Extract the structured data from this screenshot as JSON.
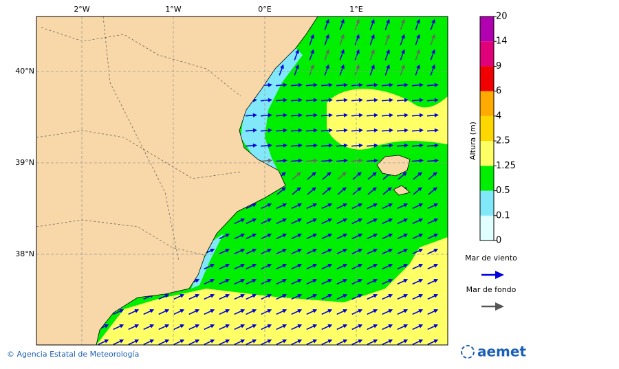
{
  "map": {
    "lon_labels": [
      "2°W",
      "1°W",
      "0°E",
      "1°E"
    ],
    "lat_labels": [
      "40°N",
      "39°N",
      "38°N"
    ],
    "colorbar": {
      "title": "Altura (m)",
      "levels": [
        0,
        0.1,
        0.5,
        1.25,
        2.5,
        4,
        6,
        9,
        14,
        20
      ],
      "colors": [
        "#e0ffff",
        "#80e8f8",
        "#00ee00",
        "#ffff66",
        "#ffd700",
        "#ffaa00",
        "#f00000",
        "#e0007a",
        "#b000b0"
      ]
    },
    "legend": [
      {
        "label": "Mar de viento",
        "color": "#0000dd"
      },
      {
        "label": "Mar de fondo",
        "color": "#555555"
      }
    ],
    "footer": {
      "credit": "© Agencia Estatal de Meteorología",
      "logo": "aemet"
    }
  }
}
